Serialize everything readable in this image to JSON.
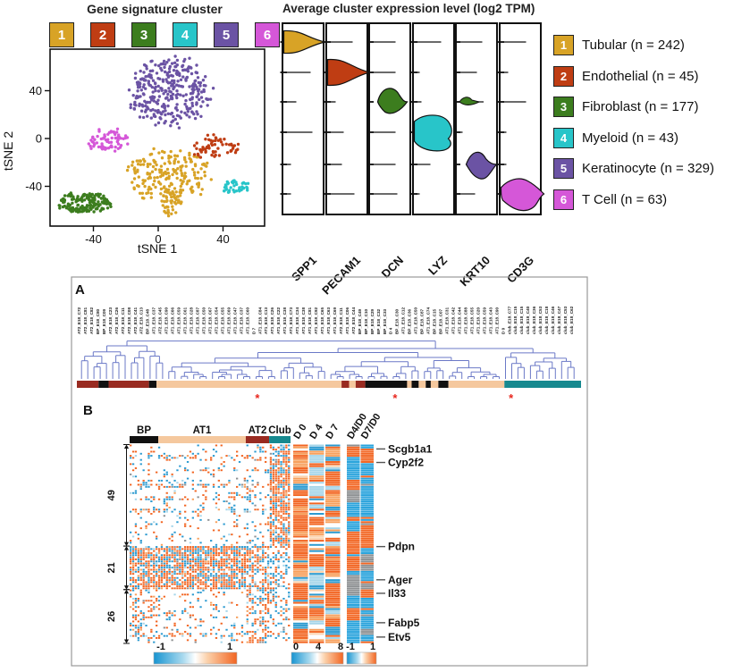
{
  "tsne": {
    "title": "Gene signature cluster"
  },
  "violin_title": "Average cluster expression level (log2 TPM)",
  "panel_labels": {
    "a": "A",
    "b": "B"
  },
  "legend": {
    "items": [
      {
        "num": "1",
        "label": "Tubular (n = 242)",
        "color": "#D8A326"
      },
      {
        "num": "2",
        "label": "Endothelial (n = 45)",
        "color": "#BF3D13"
      },
      {
        "num": "3",
        "label": "Fibroblast (n = 177)",
        "color": "#3C7D1E"
      },
      {
        "num": "4",
        "label": "Myeloid (n = 43)",
        "color": "#28C5C9"
      },
      {
        "num": "5",
        "label": "Keratinocyte (n = 329)",
        "color": "#6B53A4"
      },
      {
        "num": "6",
        "label": "T Cell (n = 63)",
        "color": "#D557D8"
      }
    ]
  },
  "colors": {
    "orange": "#F26522",
    "blue": "#2B9AD0",
    "lightOrange": "#F7A05C",
    "paleOrange": "#FBD4B0",
    "lightBlue": "#A5D5E9",
    "gray": "#8E9193",
    "peach": "#F5C89E",
    "maroon": "#992B21",
    "teal": "#17898F",
    "black": "#111111",
    "dendro": "#6B79C7",
    "scaleBlue": "#1794D1",
    "asterisk": "#E8261D"
  },
  "chart_data": [
    {
      "type": "scatter",
      "title": "Gene signature cluster",
      "xlabel": "tSNE 1",
      "ylabel": "tSNE 2",
      "x_ticks": [
        -40,
        0,
        40
      ],
      "y_ticks": [
        40,
        0,
        -40
      ],
      "clusters": [
        {
          "id": 1,
          "name": "Tubular",
          "n": 242,
          "color": "#D8A326",
          "blobs": [
            {
              "c": [
                6,
                -32
              ],
              "s": [
                27,
                25
              ],
              "n": 210
            },
            {
              "c": [
                8,
                -53
              ],
              "s": [
                7,
                13
              ],
              "n": 40
            }
          ]
        },
        {
          "id": 2,
          "name": "Endothelial",
          "n": 45,
          "color": "#BF3D13",
          "blobs": [
            {
              "c": [
                36,
                -7
              ],
              "s": [
                16,
                10
              ],
              "n": 60
            }
          ]
        },
        {
          "id": 3,
          "name": "Fibroblast",
          "n": 177,
          "color": "#3C7D1E",
          "blobs": [
            {
              "c": [
                -45,
                -54
              ],
              "s": [
                18,
                9
              ],
              "n": 160
            }
          ]
        },
        {
          "id": 4,
          "name": "Myeloid",
          "n": 43,
          "color": "#28C5C9",
          "blobs": [
            {
              "c": [
                48,
                -40
              ],
              "s": [
                10,
                6
              ],
              "n": 45
            }
          ]
        },
        {
          "id": 5,
          "name": "Keratinocyte",
          "n": 329,
          "color": "#6B53A4",
          "blobs": [
            {
              "c": [
                7,
                40
              ],
              "s": [
                26,
                30
              ],
              "n": 320
            }
          ]
        },
        {
          "id": 6,
          "name": "T Cell",
          "n": 63,
          "color": "#D557D8",
          "blobs": [
            {
              "c": [
                -32,
                -1
              ],
              "s": [
                14,
                10
              ],
              "n": 70
            }
          ]
        }
      ]
    },
    {
      "type": "violin",
      "title": "Average cluster expression level (log2 TPM)",
      "genes": [
        "SPP1",
        "PECAM1",
        "DCN",
        "LYZ",
        "KRT10",
        "CD3G"
      ],
      "expressing_cluster": [
        1,
        2,
        3,
        4,
        5,
        6
      ],
      "minor": [
        {
          "gene": "KRT10",
          "cluster": 3,
          "row": 2
        }
      ],
      "baseline_tick_lengths": [
        [
          0,
          30,
          14,
          32,
          8,
          8
        ],
        [
          28,
          0,
          9,
          18,
          16,
          30
        ],
        [
          28,
          28,
          0,
          28,
          28,
          30
        ],
        [
          30,
          6,
          8,
          0,
          18,
          6
        ],
        [
          28,
          22,
          -1,
          6,
          0,
          20
        ],
        [
          28,
          8,
          28,
          6,
          6,
          0
        ]
      ]
    },
    {
      "type": "dendrogram-heatmap",
      "samples": [
        "AT2_E18_C72",
        "AT2_E18_C81",
        "AT2_E18_C82",
        "BP_E18_C80",
        "BP_E18_C09",
        "AT2_E18_C23",
        "AT2_E18_C26",
        "AT2_E18_C11",
        "AT2_E18_C08",
        "AT2_E18_C41",
        "AT2_E18_C13",
        "BP_E18_C48",
        "AT1_E18_C37",
        "AT2_E18_C45",
        "AT1_E18_C90",
        "AT1_E18_C06",
        "AT1_E18_C59",
        "AT1_E18_C61",
        "AT1_E18_C28",
        "AT1_E18_C87",
        "AT1_E18_C50",
        "AT1_E18_C67",
        "AT1_E18_C54",
        "AT1_E18_C55",
        "AT1_E18_C69",
        "AT1_E18_C47",
        "AT1_E18_C37",
        "AT1_E18_C60",
        "D 7",
        "AT1_E18_C84",
        "AT1_E18_C13",
        "AT1_E18_C26",
        "AT1_E18_C22",
        "AT1_E18_C38",
        "AT1_E18_C73",
        "AT1_E18_C34",
        "AT1_E18_C38",
        "AT1_E18_C81",
        "AT1_E18_C92",
        "AT1_E18_C65",
        "AT1_E18_C63",
        "AT1_E18_C69",
        "AT2_E18_C11",
        "AT1_E18_C06",
        "AT2_E18_C44",
        "BP_E18_C49",
        "BP_E18_C10",
        "BP_E18_C29",
        "BP_E18_C32",
        "BP_E18_C33",
        "D 4",
        "BP_E18_C30",
        "AT1_E18_C12",
        "BP_E18_C36",
        "AT1_E18_C50",
        "BP_E18_C87",
        "AT1_E18_C74",
        "BP_E18_C15",
        "BP_E18_C07",
        "AT1_E18_C31",
        "AT1_E18_C42",
        "AT1_E18_C44",
        "AT1_E18_C88",
        "AT1_E18_C55",
        "AT1_E18_C20",
        "AT1_E18_C59",
        "AT1_E18_C43",
        "AT1_E18_C90",
        "D 0",
        "club_E18_C77",
        "club_E18_C15",
        "club_E18_C15",
        "club_E18_C40",
        "club_E18_C36",
        "club_E18_C53",
        "club_E18_C18",
        "club_E18_C46",
        "club_E18_C47",
        "club_E18_C53",
        "club_E18_C62"
      ],
      "annotation_segments": [
        {
          "color": "maroon",
          "from": 0,
          "to": 0.043
        },
        {
          "color": "black",
          "from": 0.043,
          "to": 0.063
        },
        {
          "color": "maroon",
          "from": 0.063,
          "to": 0.143
        },
        {
          "color": "black",
          "from": 0.143,
          "to": 0.158
        },
        {
          "color": "peach",
          "from": 0.158,
          "to": 0.525
        },
        {
          "color": "maroon",
          "from": 0.525,
          "to": 0.54
        },
        {
          "color": "peach",
          "from": 0.54,
          "to": 0.553
        },
        {
          "color": "maroon",
          "from": 0.553,
          "to": 0.572
        },
        {
          "color": "black",
          "from": 0.572,
          "to": 0.655
        },
        {
          "color": "peach",
          "from": 0.655,
          "to": 0.664
        },
        {
          "color": "black",
          "from": 0.664,
          "to": 0.678
        },
        {
          "color": "peach",
          "from": 0.678,
          "to": 0.692
        },
        {
          "color": "black",
          "from": 0.692,
          "to": 0.702
        },
        {
          "color": "peach",
          "from": 0.702,
          "to": 0.717
        },
        {
          "color": "black",
          "from": 0.717,
          "to": 0.737
        },
        {
          "color": "peach",
          "from": 0.737,
          "to": 0.848
        },
        {
          "color": "teal",
          "from": 0.848,
          "to": 1
        }
      ],
      "asterisk_fracs": [
        0.358,
        0.631,
        0.861
      ],
      "heatmap": {
        "row_groups": [
          {
            "label": "49",
            "count": 49
          },
          {
            "label": "21",
            "count": 21
          },
          {
            "label": "26",
            "count": 26
          }
        ],
        "col_groups": [
          {
            "label": "BP",
            "frac": 0.178,
            "color": "black"
          },
          {
            "label": "AT1",
            "frac": 0.544,
            "color": "peach"
          },
          {
            "label": "AT2",
            "frac": 0.145,
            "color": "maroon"
          },
          {
            "label": "Club",
            "frac": 0.133,
            "color": "teal"
          }
        ],
        "mid_columns": [
          "D 0",
          "D 4",
          "D 7"
        ],
        "ratio_columns": [
          "D4/D0",
          "D7/D0"
        ],
        "gene_labels": [
          {
            "name": "Scgb1a1",
            "frac": 0.022
          },
          {
            "name": "Cyp2f2",
            "frac": 0.09
          },
          {
            "name": "Pdpn",
            "frac": 0.513
          },
          {
            "name": "Ager",
            "frac": 0.68
          },
          {
            "name": "Il33",
            "frac": 0.748
          },
          {
            "name": "Fabp5",
            "frac": 0.896
          },
          {
            "name": "Etv5",
            "frac": 0.968
          }
        ],
        "scales": [
          {
            "labels": [
              "-1",
              "1"
            ]
          },
          {
            "labels": [
              "0",
              "4",
              "8"
            ]
          },
          {
            "labels": [
              "-1",
              "1"
            ]
          }
        ],
        "pattern": {
          "rows": 96,
          "cols": 62,
          "col_group_bounds": [
            0,
            11,
            45,
            54,
            62
          ],
          "row_group_bounds": [
            0,
            49,
            70,
            96
          ],
          "blocks": [
            [
              [
                0.13,
                0.5
              ],
              [
                0.1,
                0.48
              ],
              [
                0.16,
                0.5
              ],
              [
                0.78,
                0.7
              ]
            ],
            [
              [
                0.82,
                0.62
              ],
              [
                0.8,
                0.62
              ],
              [
                0.62,
                0.55
              ],
              [
                0.38,
                0.28
              ]
            ],
            [
              [
                0.38,
                0.62
              ],
              [
                0.15,
                0.42
              ],
              [
                0.55,
                0.68
              ],
              [
                0.28,
                0.45
              ]
            ]
          ],
          "stripes": [
            {
              "rows": [
                5,
                6,
                12,
                19,
                20,
                25,
                26,
                31,
                32
              ],
              "p": 0.42,
              "orange": 0.55
            },
            {
              "rows": [
                91,
                92
              ],
              "p": 0.45,
              "orange": 0.5
            }
          ],
          "mid_weights": [
            [
              0.58,
              0.16,
              0.08,
              0.05,
              0.06,
              0.07
            ],
            [
              0.2,
              0.16,
              0.1,
              0.12,
              0.26,
              0.16
            ],
            [
              0.36,
              0.18,
              0.08,
              0.08,
              0.14,
              0.16
            ]
          ],
          "ratio_weights": [
            [
              0.64,
              0.25,
              0.11
            ],
            [
              0.55,
              0.31,
              0.14
            ]
          ],
          "seeds": {
            "main": 7,
            "mid": 11,
            "ratio": 13,
            "dendro": 5
          }
        }
      }
    }
  ]
}
